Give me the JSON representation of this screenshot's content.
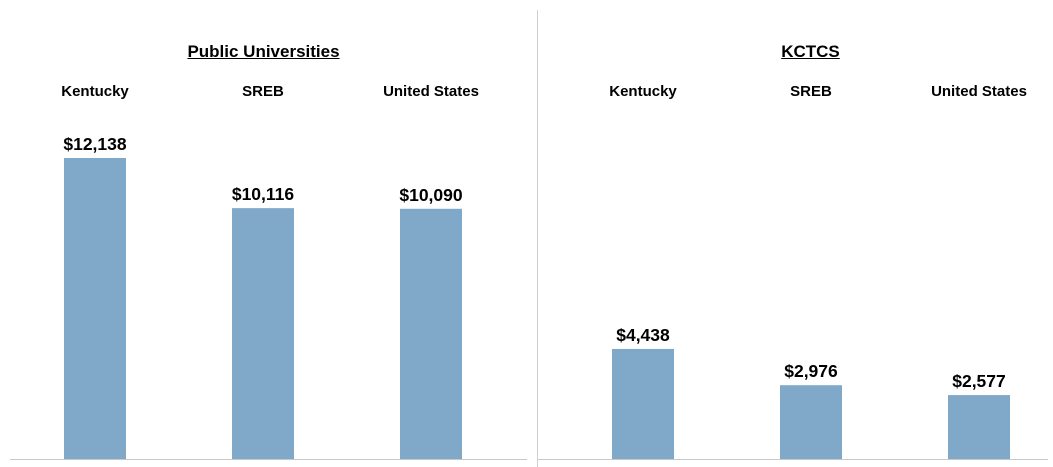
{
  "colors": {
    "bar": "#7fa8c9",
    "axis": "#c8c8c8"
  },
  "chart_data": [
    {
      "type": "bar",
      "title": "Public Universities",
      "categories": [
        "Kentucky",
        "SREB",
        "United States"
      ],
      "values": [
        12138,
        10116,
        10090
      ],
      "value_labels": [
        "$12,138",
        "$10,116",
        "$10,090"
      ],
      "ylim": [
        0,
        14000
      ],
      "grid": false,
      "legend": "none"
    },
    {
      "type": "bar",
      "title": "KCTCS",
      "categories": [
        "Kentucky",
        "SREB",
        "United States"
      ],
      "values": [
        4438,
        2976,
        2577
      ],
      "value_labels": [
        "$4,438",
        "$2,976",
        "$2,577"
      ],
      "ylim": [
        0,
        14000
      ],
      "grid": false,
      "legend": "none"
    }
  ]
}
